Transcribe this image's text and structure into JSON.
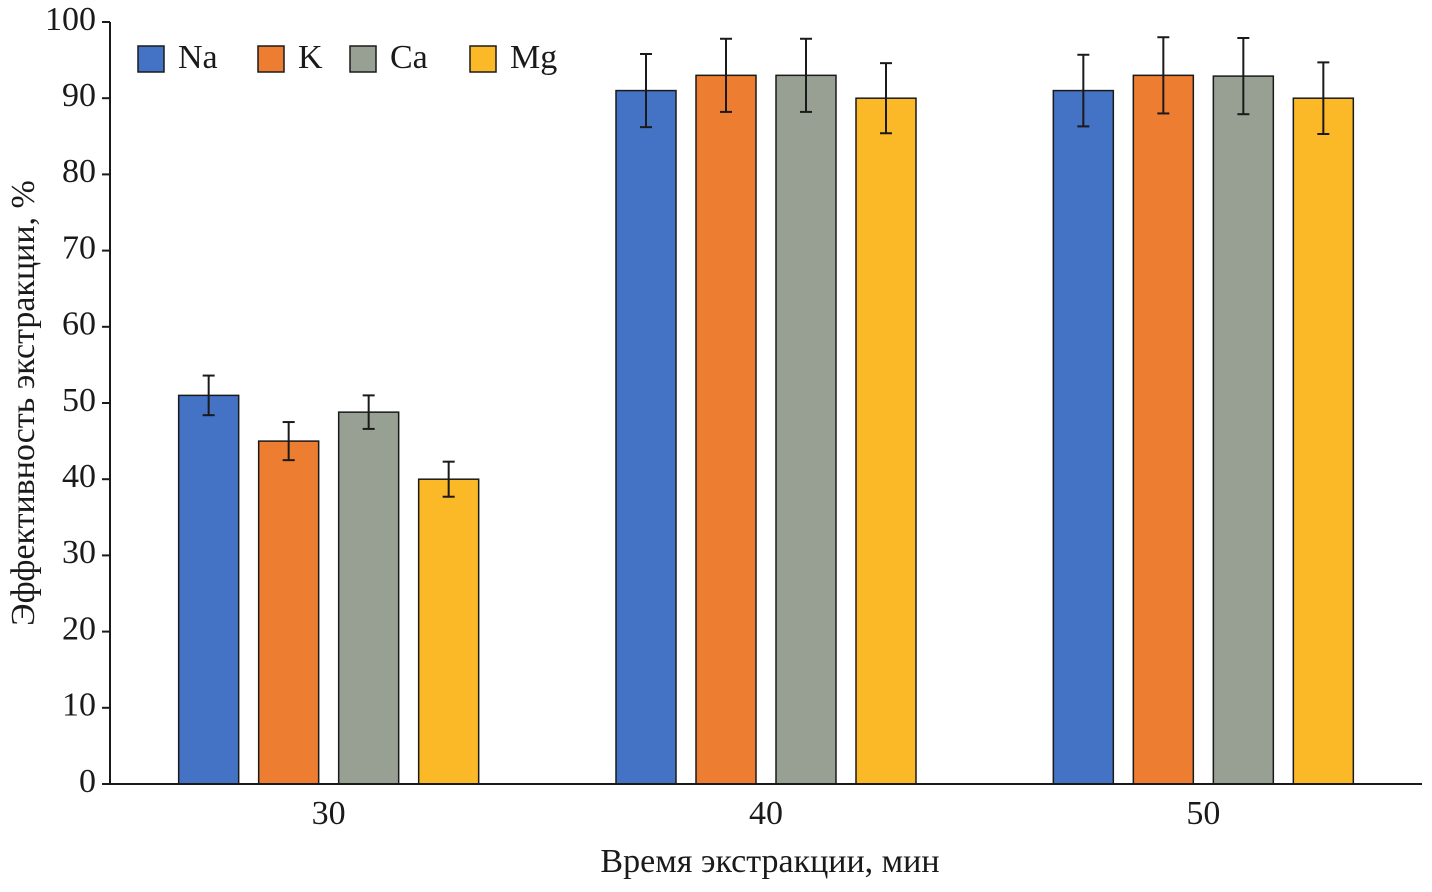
{
  "chart_data": {
    "type": "bar",
    "x_label": "Время экстракции, мин",
    "y_label": "Эффективность экстракции, %",
    "categories": [
      "30",
      "40",
      "50"
    ],
    "series": [
      {
        "name": "Na",
        "color": "#4472c4",
        "values": [
          51,
          91,
          91
        ],
        "errors": [
          2.6,
          4.8,
          4.7
        ]
      },
      {
        "name": "K",
        "color": "#ed7d31",
        "values": [
          45,
          93,
          93
        ],
        "errors": [
          2.5,
          4.8,
          5
        ]
      },
      {
        "name": "Ca",
        "color": "#97a093",
        "values": [
          48.8,
          93,
          92.9
        ],
        "errors": [
          2.2,
          4.8,
          5
        ]
      },
      {
        "name": "Mg",
        "color": "#fbb827",
        "values": [
          40,
          90,
          90
        ],
        "errors": [
          2.3,
          4.6,
          4.7
        ]
      }
    ],
    "ylim": [
      0,
      100
    ],
    "yticks": [
      0,
      10,
      20,
      30,
      40,
      50,
      60,
      70,
      80,
      90,
      100
    ],
    "legend": "upper left"
  }
}
